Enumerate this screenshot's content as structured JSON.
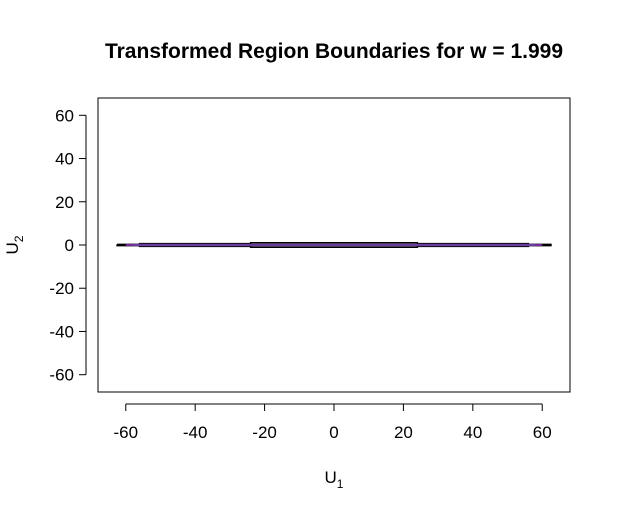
{
  "chart_data": {
    "type": "line",
    "title": "Transformed Region Boundaries for w = 1.999",
    "xlabel": {
      "main": "U",
      "sub": "1"
    },
    "ylabel": {
      "main": "U",
      "sub": "2"
    },
    "xlim": [
      -68,
      68
    ],
    "ylim": [
      -68,
      68
    ],
    "xticks": [
      -60,
      -40,
      -20,
      0,
      20,
      40,
      60
    ],
    "yticks": [
      60,
      40,
      20,
      0,
      -20,
      -40,
      -60
    ],
    "grid": false,
    "series": [
      {
        "color": "#000000",
        "points": [
          [
            -62.5,
            0.3
          ],
          [
            -56,
            0.3
          ],
          [
            -56,
            0.6
          ],
          [
            -24,
            0.6
          ],
          [
            -24,
            1.0
          ],
          [
            24,
            1.0
          ],
          [
            24,
            0.6
          ],
          [
            56,
            0.6
          ],
          [
            56,
            0.3
          ],
          [
            62.5,
            0.3
          ],
          [
            62.5,
            -0.3
          ],
          [
            56,
            -0.3
          ],
          [
            56,
            -0.6
          ],
          [
            24,
            -0.6
          ],
          [
            24,
            -1.0
          ],
          [
            -24,
            -1.0
          ],
          [
            -24,
            -0.6
          ],
          [
            -56,
            -0.6
          ],
          [
            -56,
            -0.3
          ],
          [
            -62.5,
            -0.3
          ],
          [
            -62.5,
            0.3
          ]
        ]
      },
      {
        "color": "#9933cc",
        "points": [
          [
            -60,
            0.0
          ],
          [
            60,
            0.0
          ]
        ]
      },
      {
        "color": "#6a3d9a",
        "points": [
          [
            -58,
            0.2
          ],
          [
            58,
            0.2
          ]
        ]
      },
      {
        "color": "#6a3d9a",
        "points": [
          [
            -58,
            -0.2
          ],
          [
            58,
            -0.2
          ]
        ]
      }
    ]
  }
}
